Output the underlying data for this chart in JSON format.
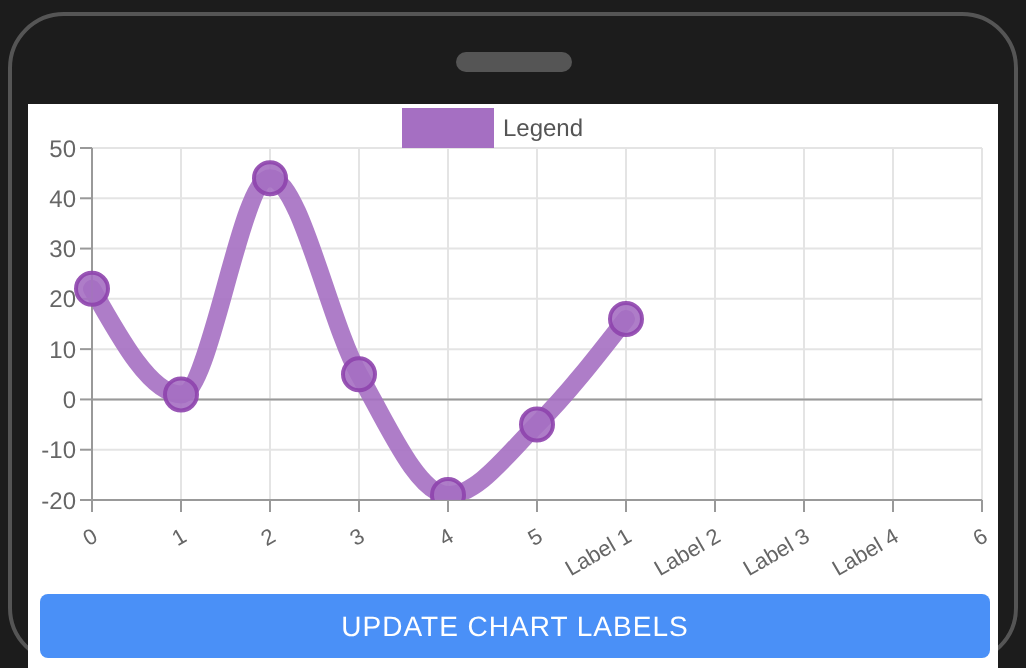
{
  "chart_data": {
    "type": "line",
    "categories": [
      "0",
      "1",
      "2",
      "3",
      "4",
      "5",
      "Label 1",
      "Label 2",
      "Label 3",
      "Label 4",
      "6"
    ],
    "series": [
      {
        "name": "Legend",
        "color": "#a56fc2",
        "values": [
          22,
          1,
          44,
          5,
          -19,
          -5,
          16,
          null,
          null,
          null,
          null
        ]
      }
    ],
    "ylim": [
      -20,
      50
    ],
    "yticks": [
      -20,
      -10,
      0,
      10,
      20,
      30,
      40,
      50
    ],
    "grid": true,
    "legend": "top",
    "marker": "circle",
    "line_style": "solid",
    "annotations": [
      "UPDATE CHART LABELS"
    ]
  }
}
